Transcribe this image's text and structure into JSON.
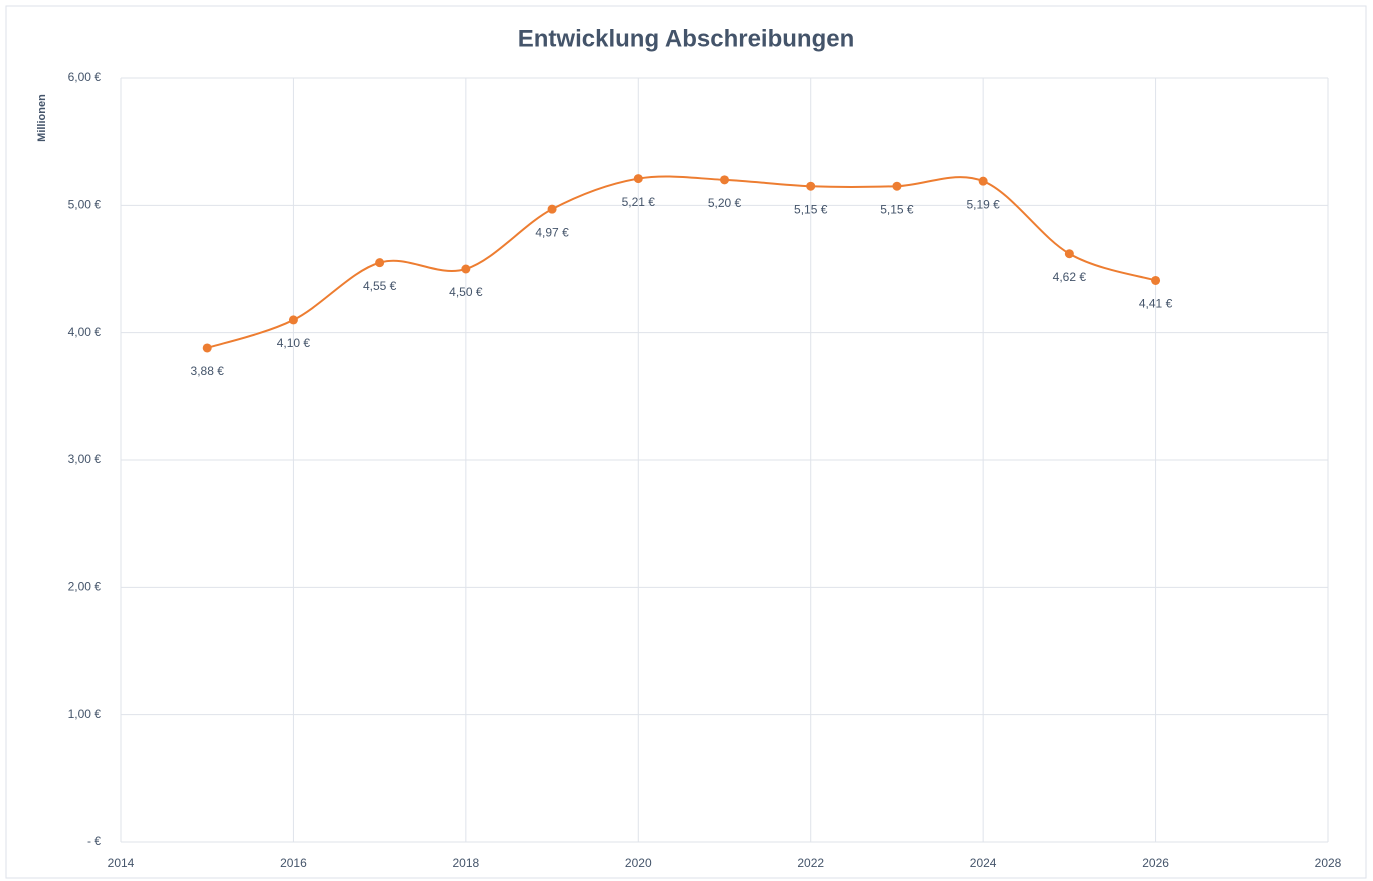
{
  "chart_data": {
    "type": "line",
    "title": "Entwicklung Abschreibungen",
    "y_axis_label": "Millionen",
    "x": [
      2015,
      2016,
      2017,
      2018,
      2019,
      2020,
      2021,
      2022,
      2023,
      2024,
      2025,
      2026
    ],
    "series": [
      {
        "name": "Abschreibungen",
        "color": "#ed7d31",
        "values": [
          3.88,
          4.1,
          4.55,
          4.5,
          4.97,
          5.21,
          5.2,
          5.15,
          5.15,
          5.19,
          4.62,
          4.41
        ],
        "value_labels": [
          "3,88 €",
          "4,10 €",
          "4,55 €",
          "4,50 €",
          "4,97 €",
          "5,21 €",
          "5,20 €",
          "5,15 €",
          "5,15 €",
          "5,19 €",
          "4,62 €",
          "4,41 €"
        ]
      }
    ],
    "xlim": [
      2014,
      2028
    ],
    "xticks": [
      2014,
      2016,
      2018,
      2020,
      2022,
      2024,
      2026,
      2028
    ],
    "ylim": [
      0,
      6
    ],
    "yticks": [
      {
        "value": 0,
        "label": "-   €"
      },
      {
        "value": 1,
        "label": "1,00 €"
      },
      {
        "value": 2,
        "label": "2,00 €"
      },
      {
        "value": 3,
        "label": "3,00 €"
      },
      {
        "value": 4,
        "label": "4,00 €"
      },
      {
        "value": 5,
        "label": "5,00 €"
      },
      {
        "value": 6,
        "label": "6,00 €"
      }
    ],
    "grid": true,
    "smooth": true
  }
}
